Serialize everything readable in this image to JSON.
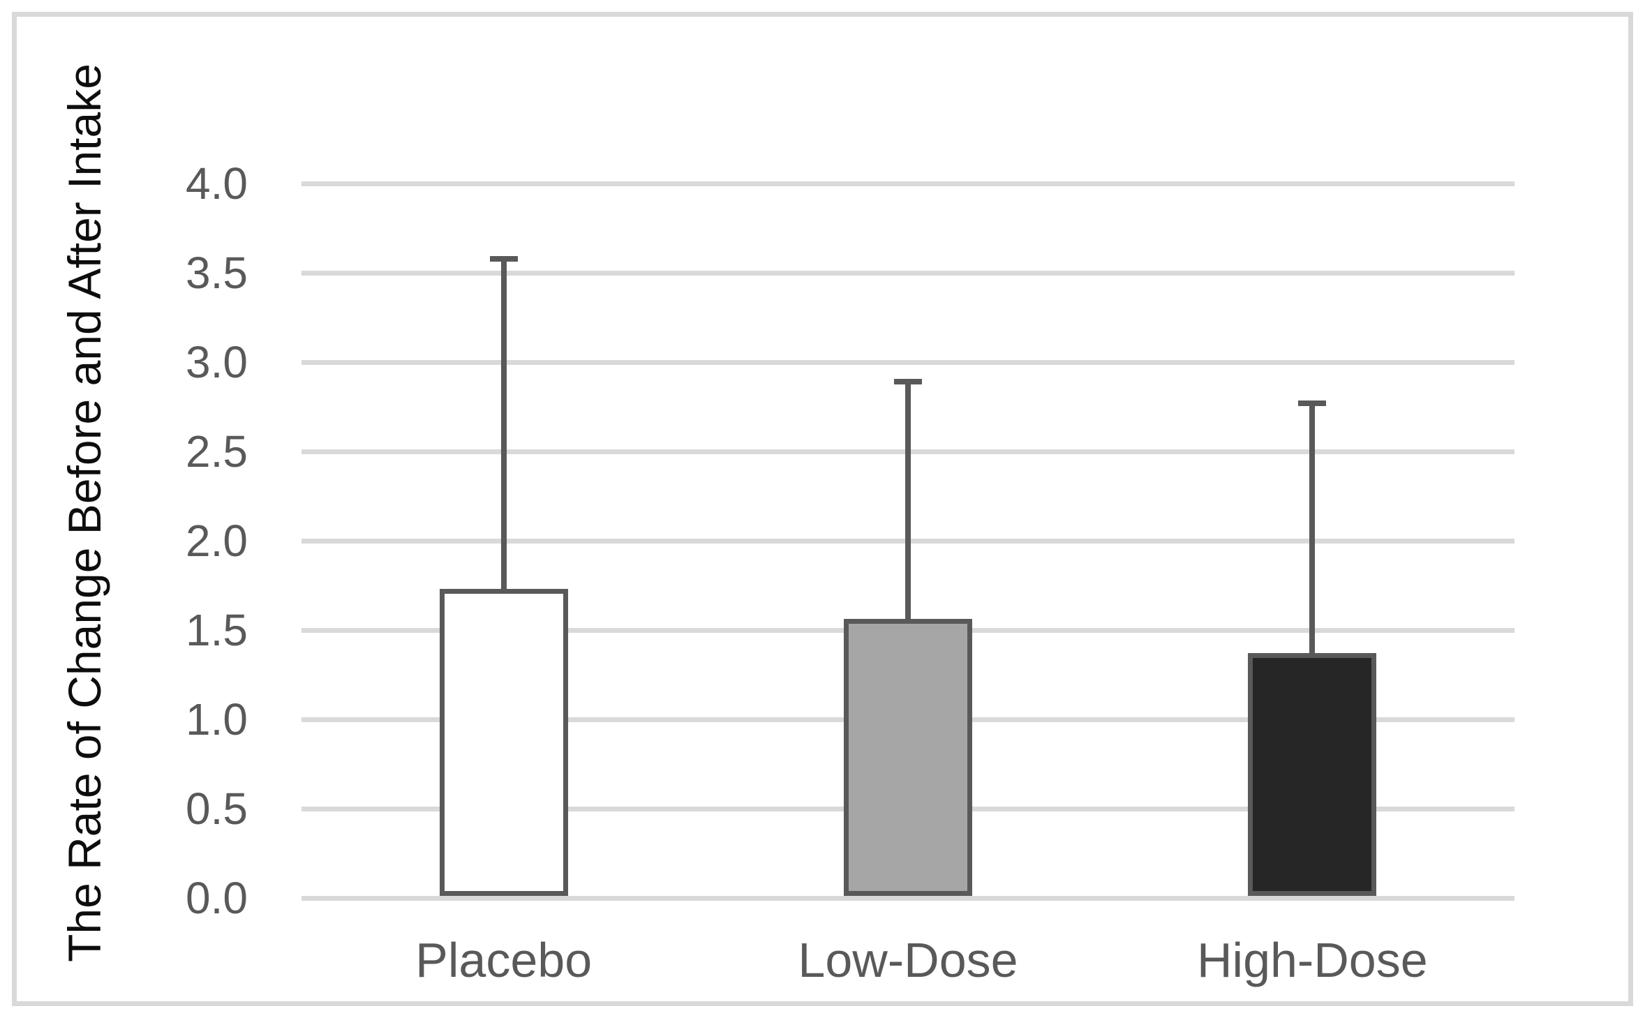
{
  "chart_data": {
    "type": "bar",
    "title": "",
    "categories": [
      "Placebo",
      "Low-Dose",
      "High-Dose"
    ],
    "values": [
      1.72,
      1.55,
      1.36
    ],
    "error_upper": [
      1.86,
      1.34,
      1.41
    ],
    "error_top_values": [
      3.58,
      2.89,
      2.77
    ],
    "xlabel": "",
    "ylabel": "The Rate of Change Before and After Intake",
    "ytick_labels": [
      "0.0",
      "0.5",
      "1.0",
      "1.5",
      "2.0",
      "2.5",
      "3.0",
      "3.5",
      "4.0"
    ],
    "ylim": [
      0.0,
      4.0
    ],
    "grid": "horizontal-only",
    "legend_position": "none",
    "colors": {
      "bar_fills": [
        "#ffffff",
        "#a6a6a6",
        "#262626"
      ],
      "bar_border": "#595959",
      "error_bar": "#595959",
      "gridline": "#d9d9d9",
      "tick_label": "#595959",
      "category_label": "#595959",
      "axis_title": "#0d0d0d",
      "frame_border": "#d9d9d9",
      "background": "#ffffff"
    }
  }
}
